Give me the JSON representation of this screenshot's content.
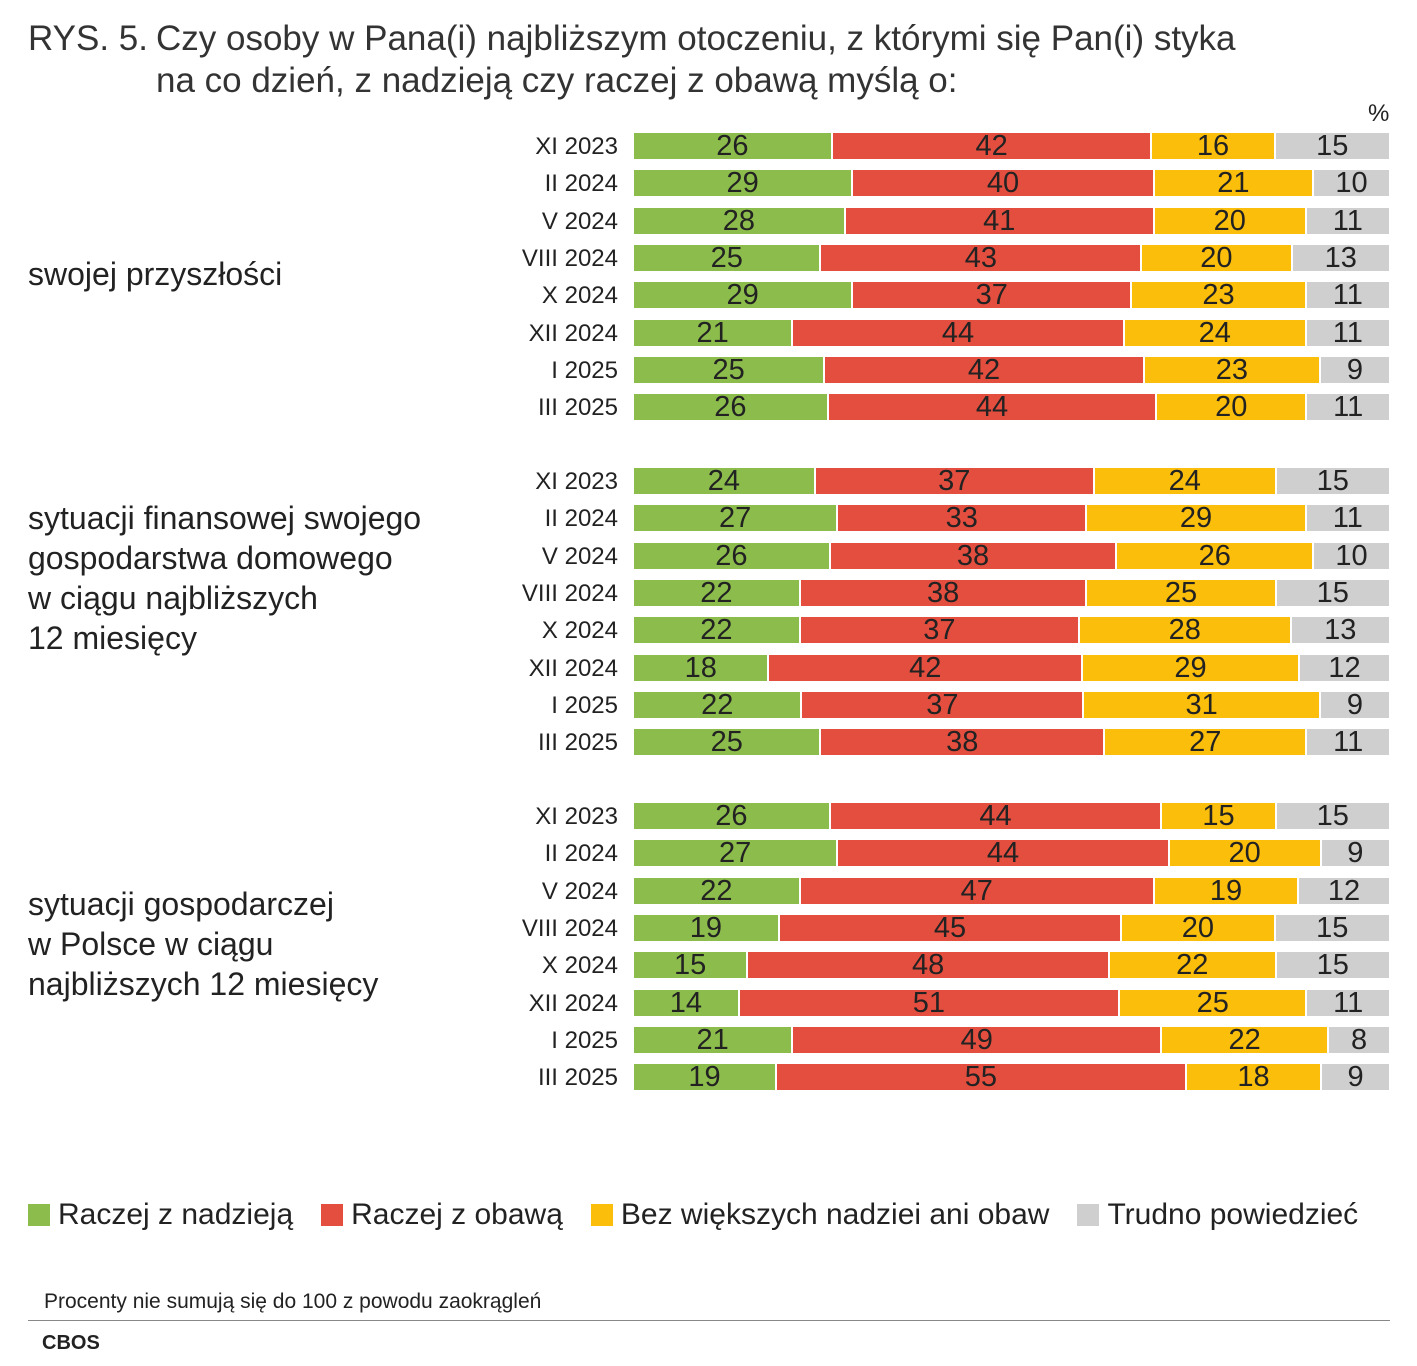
{
  "title": {
    "prefix": "RYS. 5.",
    "line1": "Czy osoby w Pana(i) najbliższym otoczeniu, z którymi się Pan(i) styka",
    "line2": "na co dzień, z nadzieją czy raczej z obawą myślą o:"
  },
  "unit": "%",
  "legend": [
    {
      "label": "Raczej z nadzieją",
      "color": "#8cbd4c"
    },
    {
      "label": "Raczej z obawą",
      "color": "#e44e3f"
    },
    {
      "label": "Bez większych nadziei ani obaw",
      "color": "#fbbe0b"
    },
    {
      "label": "Trudno powiedzieć",
      "color": "#cfcfcf"
    }
  ],
  "note": "Procenty nie sumują się do 100 z powodu zaokrągleń",
  "source": "CBOS",
  "chart_data": {
    "type": "bar",
    "orientation": "horizontal",
    "stacked": true,
    "unit": "%",
    "series_names": [
      "Raczej z nadzieją",
      "Raczej z obawą",
      "Bez większych nadziei ani obaw",
      "Trudno powiedzieć"
    ],
    "series_colors": [
      "#8cbd4c",
      "#e44e3f",
      "#fbbe0b",
      "#cfcfcf"
    ],
    "groups": [
      {
        "label_lines": [
          "swojej przyszłości"
        ],
        "rows": [
          {
            "label": "XI 2023",
            "values": [
              26,
              42,
              16,
              15
            ]
          },
          {
            "label": "II 2024",
            "values": [
              29,
              40,
              21,
              10
            ]
          },
          {
            "label": "V 2024",
            "values": [
              28,
              41,
              20,
              11
            ]
          },
          {
            "label": "VIII 2024",
            "values": [
              25,
              43,
              20,
              13
            ]
          },
          {
            "label": "X 2024",
            "values": [
              29,
              37,
              23,
              11
            ]
          },
          {
            "label": "XII 2024",
            "values": [
              21,
              44,
              24,
              11
            ]
          },
          {
            "label": "I 2025",
            "values": [
              25,
              42,
              23,
              9
            ]
          },
          {
            "label": "III 2025",
            "values": [
              26,
              44,
              20,
              11
            ]
          }
        ]
      },
      {
        "label_lines": [
          "sytuacji finansowej swojego",
          "gospodarstwa domowego",
          "w ciągu najbliższych",
          "12 miesięcy"
        ],
        "rows": [
          {
            "label": "XI 2023",
            "values": [
              24,
              37,
              24,
              15
            ]
          },
          {
            "label": "II 2024",
            "values": [
              27,
              33,
              29,
              11
            ]
          },
          {
            "label": "V 2024",
            "values": [
              26,
              38,
              26,
              10
            ]
          },
          {
            "label": "VIII 2024",
            "values": [
              22,
              38,
              25,
              15
            ]
          },
          {
            "label": "X 2024",
            "values": [
              22,
              37,
              28,
              13
            ]
          },
          {
            "label": "XII 2024",
            "values": [
              18,
              42,
              29,
              12
            ]
          },
          {
            "label": "I 2025",
            "values": [
              22,
              37,
              31,
              9
            ]
          },
          {
            "label": "III 2025",
            "values": [
              25,
              38,
              27,
              11
            ]
          }
        ]
      },
      {
        "label_lines": [
          "sytuacji gospodarczej",
          "w Polsce w ciągu",
          "najbliższych 12 miesięcy"
        ],
        "rows": [
          {
            "label": "XI 2023",
            "values": [
              26,
              44,
              15,
              15
            ]
          },
          {
            "label": "II 2024",
            "values": [
              27,
              44,
              20,
              9
            ]
          },
          {
            "label": "V 2024",
            "values": [
              22,
              47,
              19,
              12
            ]
          },
          {
            "label": "VIII 2024",
            "values": [
              19,
              45,
              20,
              15
            ]
          },
          {
            "label": "X 2024",
            "values": [
              15,
              48,
              22,
              15
            ]
          },
          {
            "label": "XII 2024",
            "values": [
              14,
              51,
              25,
              11
            ]
          },
          {
            "label": "I 2025",
            "values": [
              21,
              49,
              22,
              8
            ]
          },
          {
            "label": "III 2025",
            "values": [
              19,
              55,
              18,
              9
            ]
          }
        ]
      }
    ]
  }
}
